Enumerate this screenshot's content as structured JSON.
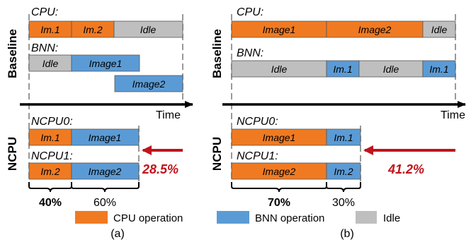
{
  "colors": {
    "cpu": "#f07a22",
    "bnn": "#5b9bd5",
    "idle": "#bfbfbf",
    "arrow_red": "#c0141c",
    "axis": "#000000",
    "dashed": "#999999"
  },
  "panel_a": {
    "baseline_label": "Baseline",
    "ncpu_label": "NCPU",
    "cpu_label": "CPU:",
    "bnn_label": "BNN:",
    "cpu_segments": [
      {
        "label": "Im.1",
        "kind": "cpu"
      },
      {
        "label": "Im.2",
        "kind": "cpu"
      },
      {
        "label": "Idle",
        "kind": "idle"
      }
    ],
    "bnn_segments": [
      {
        "label": "Idle",
        "kind": "idle"
      },
      {
        "label": "Image1",
        "kind": "bnn"
      }
    ],
    "bnn_image2": "Image2",
    "time_label": "Time",
    "ncpu0_label": "NCPU0:",
    "ncpu0_segments": [
      {
        "label": "Im.1",
        "kind": "cpu"
      },
      {
        "label": "Image1",
        "kind": "bnn"
      }
    ],
    "ncpu1_label": "NCPU1:",
    "ncpu1_segments": [
      {
        "label": "Im.2",
        "kind": "cpu"
      },
      {
        "label": "Image2",
        "kind": "bnn"
      }
    ],
    "saving": "28.5%",
    "pct_cpu": "40%",
    "pct_bnn": "60%",
    "caption": "(a)"
  },
  "panel_b": {
    "baseline_label": "Baseline",
    "ncpu_label": "NCPU",
    "cpu_label": "CPU:",
    "bnn_label": "BNN:",
    "cpu_segments": [
      {
        "label": "Image1",
        "kind": "cpu"
      },
      {
        "label": "Image2",
        "kind": "cpu"
      },
      {
        "label": "Idle",
        "kind": "idle"
      }
    ],
    "bnn_segments": [
      {
        "label": "Idle",
        "kind": "idle"
      },
      {
        "label": "Im.1",
        "kind": "bnn"
      },
      {
        "label": "Idle",
        "kind": "idle"
      },
      {
        "label": "Im.1",
        "kind": "bnn"
      }
    ],
    "time_label": "Time",
    "ncpu0_label": "NCPU0:",
    "ncpu0_segments": [
      {
        "label": "Image1",
        "kind": "cpu"
      },
      {
        "label": "Im.1",
        "kind": "bnn"
      }
    ],
    "ncpu1_label": "NCPU1:",
    "ncpu1_segments": [
      {
        "label": "Image2",
        "kind": "cpu"
      },
      {
        "label": "Im.2",
        "kind": "bnn"
      }
    ],
    "saving": "41.2%",
    "pct_cpu": "70%",
    "pct_bnn": "30%",
    "caption": "(b)"
  },
  "legend": {
    "cpu": "CPU operation",
    "bnn": "BNN operation",
    "idle": "Idle"
  }
}
